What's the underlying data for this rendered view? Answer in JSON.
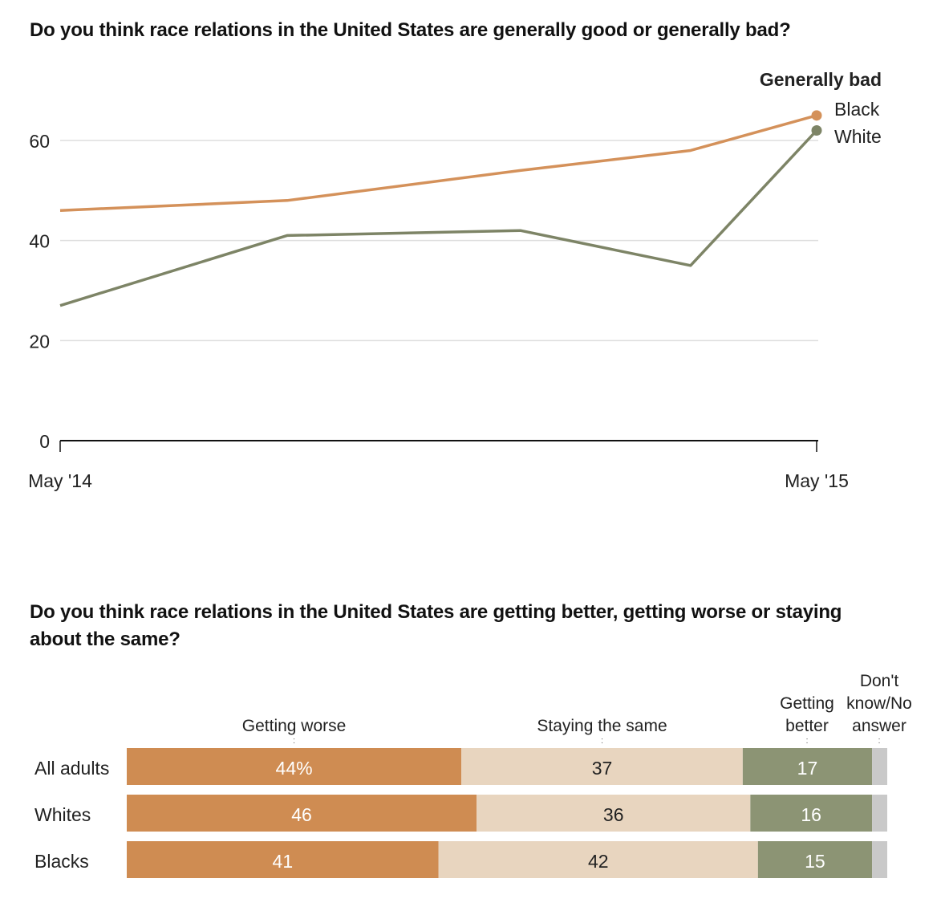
{
  "chart_data": [
    {
      "type": "line",
      "title": "Do you think race relations in the United States are generally good or generally bad?",
      "legend_title": "Generally bad",
      "x": [
        0,
        3.6,
        7.3,
        10,
        12
      ],
      "x_ticks": [
        {
          "x": 0,
          "label": "May '14"
        },
        {
          "x": 12,
          "label": "May '15"
        }
      ],
      "y_ticks": [
        0,
        20,
        40,
        60
      ],
      "ylim": [
        0,
        70
      ],
      "grid": true,
      "series": [
        {
          "name": "Black",
          "color": "#d4915a",
          "values": [
            46,
            48,
            54,
            58,
            65
          ]
        },
        {
          "name": "White",
          "color": "#7d8466",
          "values": [
            27,
            41,
            42,
            35,
            62
          ]
        }
      ]
    },
    {
      "type": "bar",
      "stacked": true,
      "orientation": "horizontal",
      "title": "Do you think race relations in the United States are getting better, getting worse or staying about the same?",
      "categories": [
        "All adults",
        "Whites",
        "Blacks"
      ],
      "series": [
        {
          "name": "Getting worse",
          "color": "#cf8c52",
          "text_color": "#fff",
          "values": [
            44,
            46,
            41
          ],
          "labels": [
            "44%",
            "46",
            "41"
          ]
        },
        {
          "name": "Staying the same",
          "color": "#e8d5bf",
          "text_color": "#222",
          "values": [
            37,
            36,
            42
          ],
          "labels": [
            "37",
            "36",
            "42"
          ]
        },
        {
          "name": "Getting better",
          "color": "#8c9474",
          "text_color": "#fff",
          "values": [
            17,
            16,
            15
          ],
          "labels": [
            "17",
            "16",
            "15"
          ]
        },
        {
          "name": "Don't know/No answer",
          "color": "#c9c9c9",
          "text_color": "#222",
          "values": [
            2,
            2,
            2
          ],
          "labels": [
            "",
            "",
            ""
          ]
        }
      ]
    }
  ]
}
